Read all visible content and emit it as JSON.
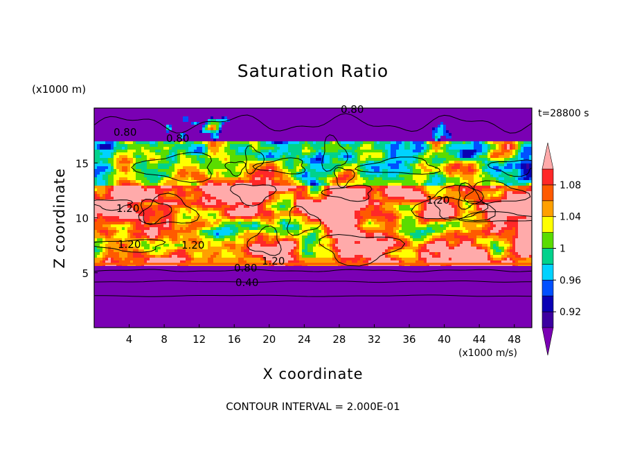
{
  "chart_data": {
    "type": "heatmap",
    "title": "Saturation Ratio",
    "xlabel": "X coordinate",
    "ylabel": "Z coordinate",
    "x_unit": "(x1000 m/s)",
    "y_unit": "(x1000 m)",
    "time_label": "t=28800 s",
    "footer": "CONTOUR INTERVAL = 2.000E-01",
    "xlim": [
      0,
      50
    ],
    "ylim": [
      0,
      20
    ],
    "x_ticks": [
      "4",
      "8",
      "12",
      "16",
      "20",
      "24",
      "28",
      "32",
      "36",
      "40",
      "44",
      "48"
    ],
    "y_ticks": [
      "5",
      "10",
      "15"
    ],
    "colorbar": {
      "labels": [
        "0.92",
        "0.96",
        "1",
        "1.04",
        "1.08"
      ],
      "levels": [
        0.9,
        0.92,
        0.94,
        0.96,
        0.98,
        1.0,
        1.02,
        1.04,
        1.06,
        1.08,
        1.1
      ],
      "colors": [
        "#7a00b4",
        "#3c00a0",
        "#0a00b4",
        "#0050ff",
        "#00d2ff",
        "#00d28c",
        "#5adc00",
        "#ffff00",
        "#ffa000",
        "#ff5a00",
        "#ff2828",
        "#ffaaaa"
      ]
    },
    "contour_labels": [
      "0.80",
      "0.80",
      "1.20",
      "1.20",
      "1.20",
      "1.20",
      "0.80",
      "0.40",
      "1.20",
      "0.80"
    ],
    "layers": [
      {
        "z_range": [
          0,
          5.8
        ],
        "value": "below 0.92"
      },
      {
        "z_range": [
          5.8,
          13
        ],
        "value": "mostly above 1.10"
      },
      {
        "z_range": [
          13,
          17
        ],
        "value": "mixed 0.90 to above 1.10"
      },
      {
        "z_range": [
          17,
          20
        ],
        "value": "mostly below 0.92"
      }
    ]
  }
}
